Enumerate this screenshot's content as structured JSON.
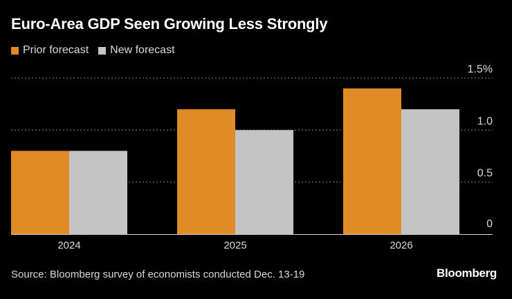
{
  "title": "Euro-Area GDP Seen Growing Less Strongly",
  "legend": [
    {
      "label": "Prior forecast",
      "color": "#E08B25"
    },
    {
      "label": "New forecast",
      "color": "#C4C4C4"
    }
  ],
  "chart_data": {
    "type": "bar",
    "title": "Euro-Area GDP Seen Growing Less Strongly",
    "categories": [
      "2024",
      "2025",
      "2026"
    ],
    "series": [
      {
        "name": "Prior forecast",
        "values": [
          0.8,
          1.2,
          1.4
        ],
        "color": "#E08B25"
      },
      {
        "name": "New forecast",
        "values": [
          0.8,
          1.0,
          1.2
        ],
        "color": "#C4C4C4"
      }
    ],
    "ylim": [
      0,
      1.5
    ],
    "yticks": [
      0,
      0.5,
      1.0,
      1.5
    ],
    "ytick_labels": [
      "0",
      "0.5",
      "1.0",
      "1.5%"
    ],
    "xlabel": "",
    "ylabel": "",
    "grid": true,
    "legend_position": "top-left"
  },
  "footer": {
    "source": "Source: Bloomberg survey of economists conducted Dec. 13-19",
    "brand": "Bloomberg"
  }
}
